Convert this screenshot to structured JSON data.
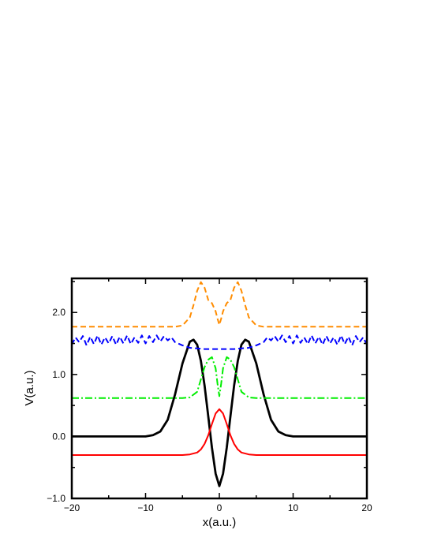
{
  "chart_data": {
    "type": "line",
    "xlabel": "x(a.u.)",
    "ylabel": "V(a.u.)",
    "xlim": [
      -20,
      20
    ],
    "ylim": [
      -1.0,
      2.55
    ],
    "xticks": [
      -20,
      -10,
      0,
      10,
      20
    ],
    "xtick_labels": [
      "−20",
      "−10",
      "0",
      "10",
      "20"
    ],
    "yticks": [
      -1.0,
      0.0,
      1.0,
      2.0
    ],
    "ytick_labels": [
      "−1.0",
      "0.0",
      "1.0",
      "2.0"
    ],
    "grid": false,
    "legend": "none",
    "series": [
      {
        "color": "#000000",
        "style": "solid",
        "x": [
          -20,
          -12,
          -10,
          -9,
          -8,
          -7,
          -6,
          -5,
          -4,
          -3.5,
          -3,
          -2.5,
          -2,
          -1.5,
          -1,
          -0.5,
          0,
          0.5,
          1,
          1.5,
          2,
          2.5,
          3,
          3.5,
          4,
          5,
          6,
          7,
          8,
          9,
          10,
          12,
          20
        ],
        "y": [
          0.0,
          0.0,
          0.0,
          0.02,
          0.08,
          0.27,
          0.68,
          1.18,
          1.53,
          1.56,
          1.48,
          1.22,
          0.82,
          0.32,
          -0.18,
          -0.6,
          -0.8,
          -0.6,
          -0.18,
          0.32,
          0.82,
          1.22,
          1.48,
          1.56,
          1.53,
          1.18,
          0.68,
          0.27,
          0.08,
          0.02,
          0.0,
          0.0,
          0.0
        ]
      },
      {
        "color": "#ff0000",
        "style": "solid",
        "x": [
          -20,
          -5,
          -4,
          -3,
          -2.5,
          -2,
          -1.5,
          -1,
          -0.5,
          0,
          0.5,
          1,
          1.5,
          2,
          2.5,
          3,
          4,
          5,
          20
        ],
        "y": [
          -0.3,
          -0.3,
          -0.29,
          -0.26,
          -0.21,
          -0.12,
          0.02,
          0.2,
          0.37,
          0.44,
          0.37,
          0.2,
          0.02,
          -0.12,
          -0.21,
          -0.26,
          -0.29,
          -0.3,
          -0.3
        ]
      },
      {
        "color": "#00ee00",
        "style": "dashdot",
        "x": [
          -20,
          -5,
          -4,
          -3,
          -2.5,
          -2,
          -1.5,
          -1,
          -0.5,
          -0.25,
          0,
          0.25,
          0.5,
          1,
          1.5,
          2,
          2.5,
          3,
          4,
          5,
          20
        ],
        "y": [
          0.62,
          0.62,
          0.63,
          0.72,
          0.92,
          1.12,
          1.24,
          1.28,
          1.1,
          0.85,
          0.65,
          0.85,
          1.1,
          1.28,
          1.24,
          1.12,
          0.92,
          0.72,
          0.63,
          0.62,
          0.62
        ]
      },
      {
        "color": "#0000ff",
        "style": "dashed",
        "x": [
          -20,
          -19.5,
          -19,
          -18.5,
          -18,
          -17.5,
          -17,
          -16.5,
          -16,
          -15.5,
          -15,
          -14.5,
          -14,
          -13.5,
          -13,
          -12.5,
          -12,
          -11.5,
          -11,
          -10.5,
          -10,
          -9.5,
          -9,
          -8.5,
          -8,
          -7.5,
          -7,
          -6.5,
          -6,
          -5,
          -4,
          -3,
          -2,
          -1,
          0,
          1,
          2,
          3,
          4,
          5,
          6,
          6.5,
          7,
          7.5,
          8,
          8.5,
          9,
          9.5,
          10,
          10.5,
          11,
          11.5,
          12,
          12.5,
          13,
          13.5,
          14,
          14.5,
          15,
          15.5,
          16,
          16.5,
          17,
          17.5,
          18,
          18.5,
          19,
          19.5,
          20
        ],
        "y": [
          1.48,
          1.6,
          1.52,
          1.62,
          1.47,
          1.61,
          1.49,
          1.63,
          1.48,
          1.6,
          1.5,
          1.62,
          1.48,
          1.61,
          1.5,
          1.63,
          1.49,
          1.6,
          1.51,
          1.63,
          1.5,
          1.62,
          1.52,
          1.63,
          1.53,
          1.62,
          1.55,
          1.6,
          1.52,
          1.47,
          1.43,
          1.42,
          1.41,
          1.41,
          1.41,
          1.41,
          1.41,
          1.42,
          1.43,
          1.47,
          1.52,
          1.6,
          1.55,
          1.62,
          1.53,
          1.63,
          1.52,
          1.62,
          1.5,
          1.63,
          1.51,
          1.6,
          1.49,
          1.63,
          1.5,
          1.61,
          1.48,
          1.62,
          1.5,
          1.6,
          1.48,
          1.63,
          1.49,
          1.61,
          1.47,
          1.62,
          1.52,
          1.6,
          1.48
        ]
      },
      {
        "color": "#ff8c00",
        "style": "dashed",
        "x": [
          -20,
          -6,
          -5,
          -4,
          -3.5,
          -3,
          -2.5,
          -2,
          -1.5,
          -1,
          -0.5,
          -0.25,
          0,
          0.25,
          0.5,
          1,
          1.5,
          2,
          2.5,
          3,
          3.5,
          4,
          5,
          6,
          20
        ],
        "y": [
          1.77,
          1.77,
          1.79,
          1.92,
          2.12,
          2.35,
          2.49,
          2.4,
          2.2,
          2.15,
          2.02,
          1.9,
          1.8,
          1.9,
          2.02,
          2.15,
          2.2,
          2.4,
          2.49,
          2.35,
          2.12,
          1.92,
          1.79,
          1.77,
          1.77
        ]
      }
    ]
  }
}
